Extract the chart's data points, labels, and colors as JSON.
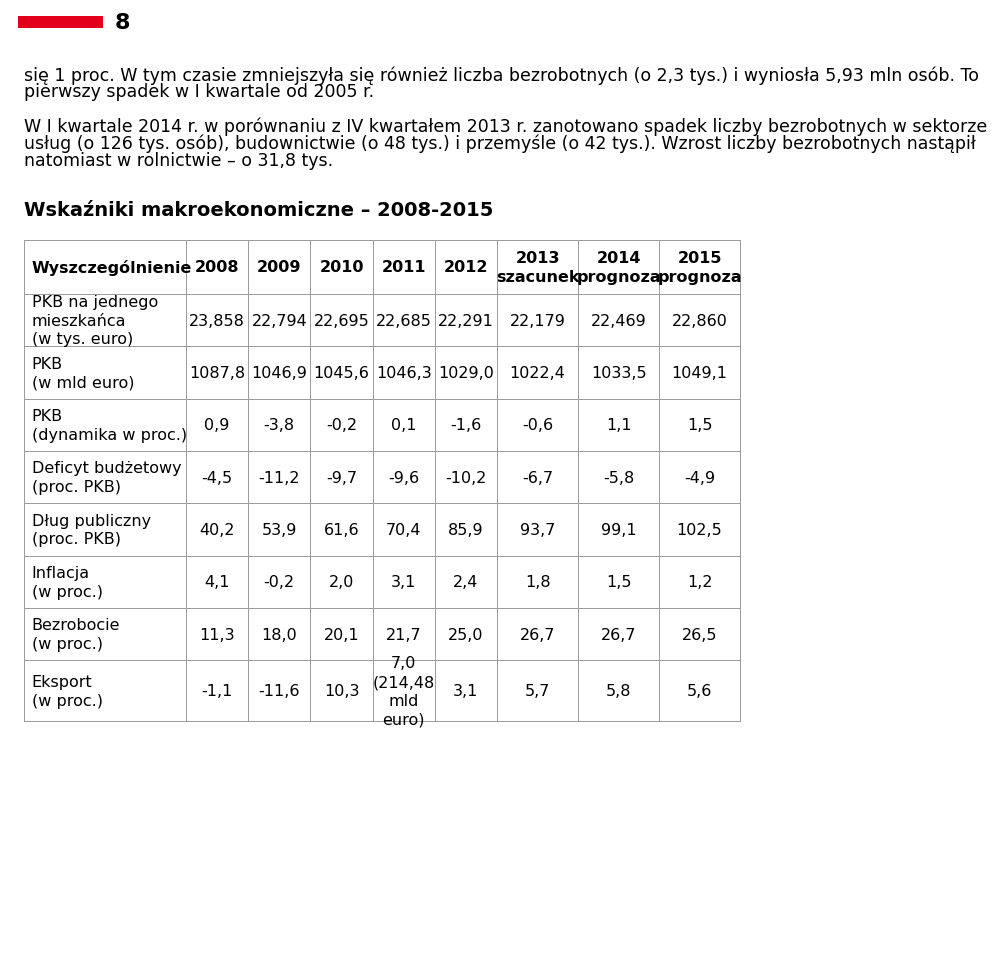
{
  "page_number": "8",
  "red_bar_color": "#e2001a",
  "header_text_lines": [
    "się 1 proc. W tym czasie zmniejszyła się również liczba bezrobotnych (o 2,3 tys.) i wyniosła 5,93 mln osób. To",
    "pierwszy spadek w I kwartale od 2005 r.",
    "",
    "W I kwartale 2014 r. w porównaniu z IV kwartałem 2013 r. zanotowano spadek liczby bezrobotnych w sektorze",
    "usług (o 126 tys. osób), budownictwie (o 48 tys.) i przemyśle (o 42 tys.). Wzrost liczby bezrobotnych nastąpił",
    "natomiast w rolnictwie – o 31,8 tys."
  ],
  "section_title": "Wskaźniki makroekonomiczne – 2008-2015",
  "col_headers": [
    "Wyszczególnienie",
    "2008",
    "2009",
    "2010",
    "2011",
    "2012",
    "2013\nszacunek",
    "2014\nprognoza",
    "2015\nprognoza"
  ],
  "rows": [
    {
      "label": "PKB na jednego\nmieszkańca\n(w tys. euro)",
      "values": [
        "23,858",
        "22,794",
        "22,695",
        "22,685",
        "22,291",
        "22,179",
        "22,469",
        "22,860"
      ]
    },
    {
      "label": "PKB\n(w mld euro)",
      "values": [
        "1087,8",
        "1046,9",
        "1045,6",
        "1046,3",
        "1029,0",
        "1022,4",
        "1033,5",
        "1049,1"
      ]
    },
    {
      "label": "PKB\n(dynamika w proc.)",
      "values": [
        "0,9",
        "-3,8",
        "-0,2",
        "0,1",
        "-1,6",
        "-0,6",
        "1,1",
        "1,5"
      ]
    },
    {
      "label": "Deficyt budżetowy\n(proc. PKB)",
      "values": [
        "-4,5",
        "-11,2",
        "-9,7",
        "-9,6",
        "-10,2",
        "-6,7",
        "-5,8",
        "-4,9"
      ]
    },
    {
      "label": "Dług publiczny\n(proc. PKB)",
      "values": [
        "40,2",
        "53,9",
        "61,6",
        "70,4",
        "85,9",
        "93,7",
        "99,1",
        "102,5"
      ]
    },
    {
      "label": "Inflacja\n(w proc.)",
      "values": [
        "4,1",
        "-0,2",
        "2,0",
        "3,1",
        "2,4",
        "1,8",
        "1,5",
        "1,2"
      ]
    },
    {
      "label": "Bezrobocie\n(w proc.)",
      "values": [
        "11,3",
        "18,0",
        "20,1",
        "21,7",
        "25,0",
        "26,7",
        "26,7",
        "26,5"
      ]
    },
    {
      "label": "Eksport\n(w proc.)",
      "values": [
        "-1,1",
        "-11,6",
        "10,3",
        "7,0\n(214,48\nmld\neuro)",
        "3,1",
        "5,7",
        "5,8",
        "5,6"
      ]
    }
  ],
  "bg_color": "#ffffff",
  "text_color": "#000000",
  "line_color": "#999999",
  "header_font_size": 12.5,
  "title_font_size": 14,
  "table_font_size": 11.5,
  "col_header_font_size": 11.5,
  "page_num_font_size": 16
}
